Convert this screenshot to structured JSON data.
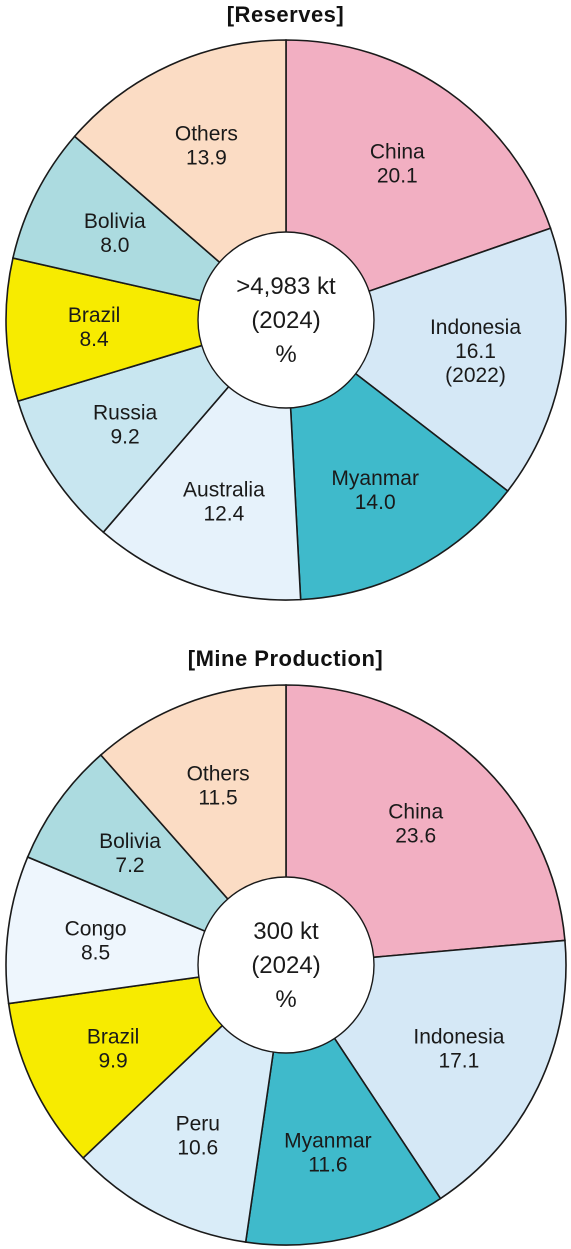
{
  "chart_data": [
    {
      "type": "pie",
      "title": "[Reserves]",
      "center_text": [
        ">4,983 kt",
        "(2024)",
        "%"
      ],
      "slices": [
        {
          "label": "China",
          "value": 20.1,
          "value_text": "20.1",
          "note": "",
          "color": "#f2afc2"
        },
        {
          "label": "Indonesia",
          "value": 16.1,
          "value_text": "16.1",
          "note": "(2022)",
          "color": "#d5e8f6"
        },
        {
          "label": "Myanmar",
          "value": 14.0,
          "value_text": "14.0",
          "note": "",
          "color": "#3fbacb"
        },
        {
          "label": "Australia",
          "value": 12.4,
          "value_text": "12.4",
          "note": "",
          "color": "#e6f2fb"
        },
        {
          "label": "Russia",
          "value": 9.2,
          "value_text": "9.2",
          "note": "",
          "color": "#c8e6f0"
        },
        {
          "label": "Brazil",
          "value": 8.4,
          "value_text": "8.4",
          "note": "",
          "color": "#f7eb00"
        },
        {
          "label": "Bolivia",
          "value": 8.0,
          "value_text": "8.0",
          "note": "",
          "color": "#acdbe0"
        },
        {
          "label": "Others",
          "value": 13.9,
          "value_text": "13.9",
          "note": "",
          "color": "#fbdcc4"
        }
      ]
    },
    {
      "type": "pie",
      "title": "[Mine Production]",
      "center_text": [
        "300 kt",
        "(2024)",
        "%"
      ],
      "slices": [
        {
          "label": "China",
          "value": 23.6,
          "value_text": "23.6",
          "note": "",
          "color": "#f2afc2"
        },
        {
          "label": "Indonesia",
          "value": 17.1,
          "value_text": "17.1",
          "note": "",
          "color": "#d5e8f6"
        },
        {
          "label": "Myanmar",
          "value": 11.6,
          "value_text": "11.6",
          "note": "",
          "color": "#3fbacb"
        },
        {
          "label": "Peru",
          "value": 10.6,
          "value_text": "10.6",
          "note": "",
          "color": "#d9ecf8"
        },
        {
          "label": "Brazil",
          "value": 9.9,
          "value_text": "9.9",
          "note": "",
          "color": "#f7eb00"
        },
        {
          "label": "Congo",
          "value": 8.5,
          "value_text": "8.5",
          "note": "",
          "color": "#eef6fd"
        },
        {
          "label": "Bolivia",
          "value": 7.2,
          "value_text": "7.2",
          "note": "",
          "color": "#acdbe0"
        },
        {
          "label": "Others",
          "value": 11.5,
          "value_text": "11.5",
          "note": "",
          "color": "#fbdcc4"
        }
      ]
    }
  ]
}
